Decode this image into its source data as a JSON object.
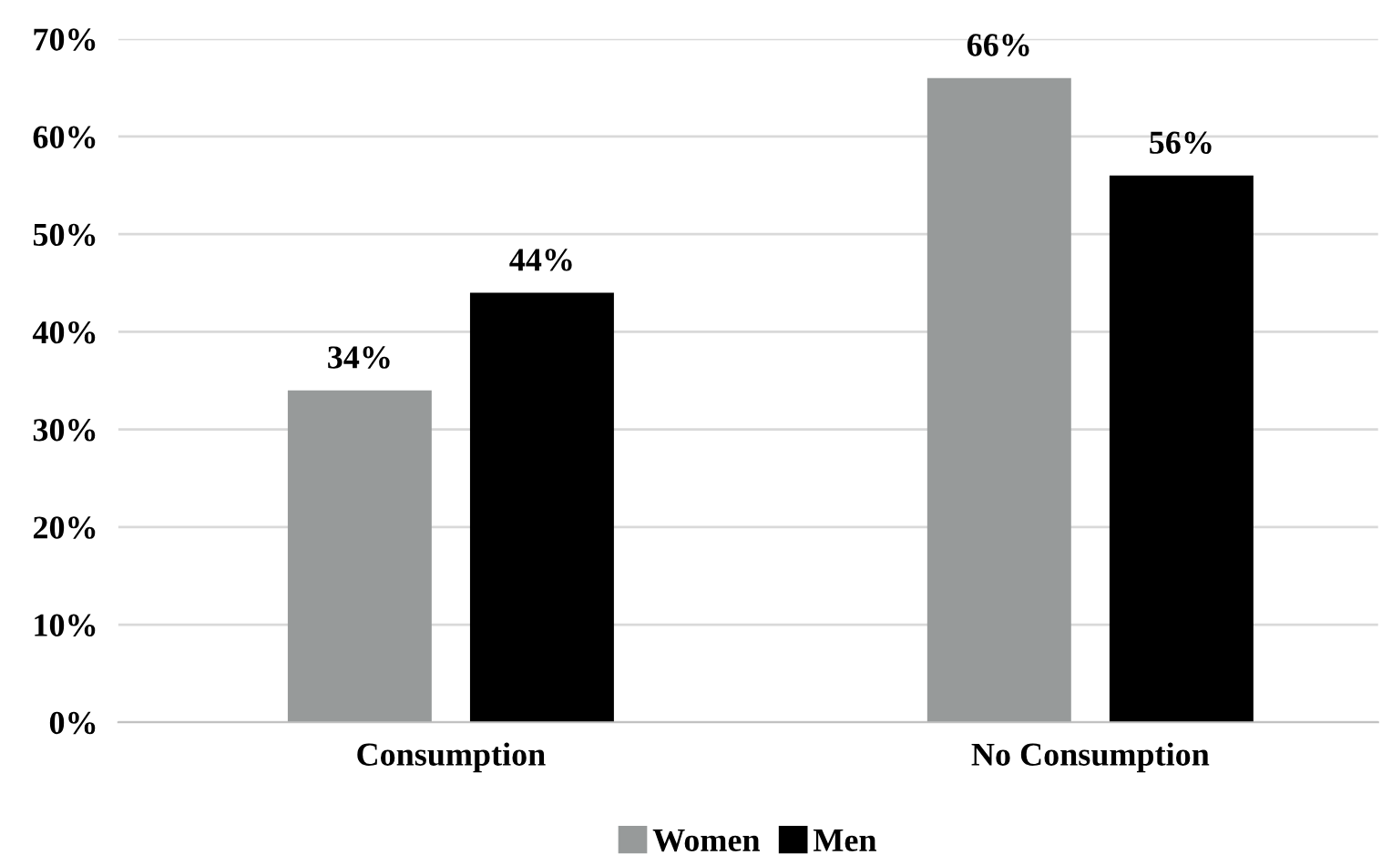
{
  "chart_data": {
    "type": "bar",
    "categories": [
      "Consumption",
      "No Consumption"
    ],
    "series": [
      {
        "name": "Women",
        "color": "#979a9a",
        "values": [
          34,
          66
        ],
        "value_labels": [
          "34%",
          "66%"
        ]
      },
      {
        "name": "Men",
        "color": "#000000",
        "values": [
          44,
          56
        ],
        "value_labels": [
          "44%",
          "56%"
        ]
      }
    ],
    "ylim": [
      0,
      70
    ],
    "yticks": [
      {
        "value": 0,
        "label": "0%"
      },
      {
        "value": 10,
        "label": "10%"
      },
      {
        "value": 20,
        "label": "20%"
      },
      {
        "value": 30,
        "label": "30%"
      },
      {
        "value": 40,
        "label": "40%"
      },
      {
        "value": 50,
        "label": "50%"
      },
      {
        "value": 60,
        "label": "60%"
      },
      {
        "value": 70,
        "label": "70%"
      }
    ],
    "grid": "y",
    "legend": "bottom"
  }
}
